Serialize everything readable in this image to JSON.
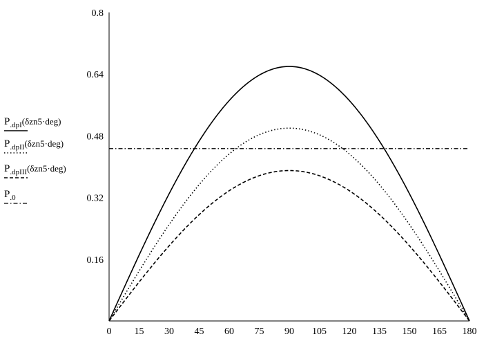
{
  "chart_data": {
    "type": "line",
    "title": "",
    "xlabel": "",
    "ylabel": "",
    "xlim": [
      0,
      180
    ],
    "ylim": [
      0,
      0.8
    ],
    "x_ticks": [
      "0",
      "15",
      "30",
      "45",
      "60",
      "75",
      "90",
      "105",
      "120",
      "135",
      "150",
      "165",
      "180"
    ],
    "y_ticks": [
      "0.16",
      "0.32",
      "0.48",
      "0.64",
      "0.8"
    ],
    "grid": false,
    "legend_position": "left",
    "series": [
      {
        "name": "P.dpI(δzn5·deg)",
        "name_base": "P",
        "name_sub": ".dpI",
        "name_arg": "(δzn5·deg)",
        "style": "solid",
        "color": "#000000",
        "x": [
          0,
          15,
          30,
          45,
          60,
          75,
          90,
          105,
          120,
          135,
          150,
          165,
          180
        ],
        "values": [
          0,
          0.171,
          0.33,
          0.467,
          0.572,
          0.638,
          0.66,
          0.638,
          0.572,
          0.467,
          0.33,
          0.171,
          0
        ]
      },
      {
        "name": "P.dpII(δzn5·deg)",
        "name_base": "P",
        "name_sub": ".dpII",
        "name_arg": "(δzn5·deg)",
        "style": "dotted",
        "color": "#000000",
        "x": [
          0,
          15,
          30,
          45,
          60,
          75,
          90,
          105,
          120,
          135,
          150,
          165,
          180
        ],
        "values": [
          0,
          0.129,
          0.25,
          0.354,
          0.433,
          0.483,
          0.5,
          0.483,
          0.433,
          0.354,
          0.25,
          0.129,
          0
        ]
      },
      {
        "name": "P.dpIII(δzn5·deg)",
        "name_base": "P",
        "name_sub": ".dpIII",
        "name_arg": "(δzn5·deg)",
        "style": "dashed",
        "color": "#000000",
        "x": [
          0,
          15,
          30,
          45,
          60,
          75,
          90,
          105,
          120,
          135,
          150,
          165,
          180
        ],
        "values": [
          0,
          0.101,
          0.195,
          0.276,
          0.338,
          0.377,
          0.39,
          0.377,
          0.338,
          0.276,
          0.195,
          0.101,
          0
        ]
      },
      {
        "name": "P.0",
        "name_base": "P",
        "name_sub": ".0",
        "name_arg": "",
        "style": "dashdot",
        "color": "#000000",
        "x": [
          0,
          180
        ],
        "values": [
          0.447,
          0.447
        ]
      }
    ]
  }
}
